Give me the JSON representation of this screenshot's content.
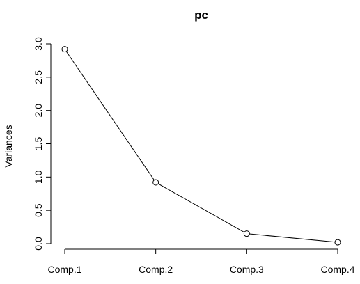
{
  "chart_data": {
    "type": "line",
    "title": "pc",
    "xlabel": "",
    "ylabel": "Variances",
    "categories": [
      "Comp.1",
      "Comp.2",
      "Comp.3",
      "Comp.4"
    ],
    "values": [
      2.92,
      0.92,
      0.15,
      0.02
    ],
    "ylim": [
      0,
      3
    ],
    "yticks": [
      "0.0",
      "0.5",
      "1.0",
      "1.5",
      "2.0",
      "2.5",
      "3.0"
    ],
    "grid": false,
    "markers": "open-circle",
    "line_color": "#000000"
  }
}
